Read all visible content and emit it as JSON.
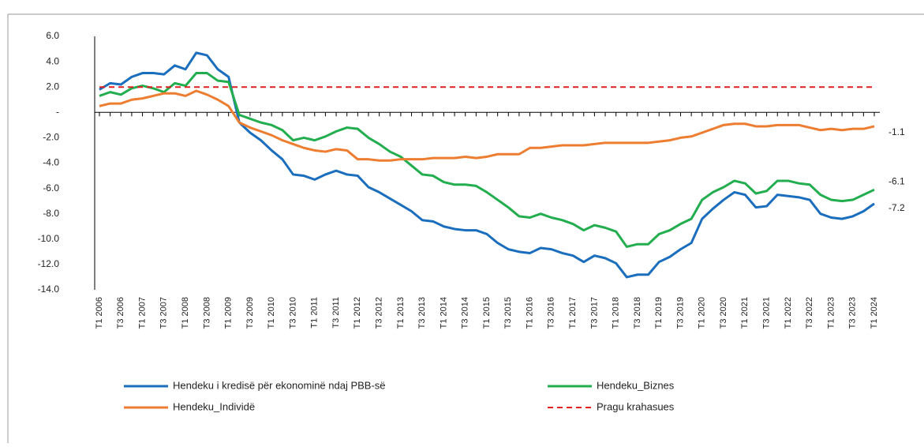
{
  "chart_data": {
    "type": "line",
    "categories": [
      "T1 2006",
      null,
      "T3 2006",
      null,
      "T1 2007",
      null,
      "T3 2007",
      null,
      "T1 2008",
      null,
      "T3 2008",
      null,
      "T1 2009",
      null,
      "T3 2009",
      null,
      "T1 2010",
      null,
      "T3 2010",
      null,
      "T1 2011",
      null,
      "T3 2011",
      null,
      "T1 2012",
      null,
      "T3 2012",
      null,
      "T1 2013",
      null,
      "T3 2013",
      null,
      "T1 2014",
      null,
      "T3 2014",
      null,
      "T1 2015",
      null,
      "T3 2015",
      null,
      "T1 2016",
      null,
      "T3 2016",
      null,
      "T1 2017",
      null,
      "T3 2017",
      null,
      "T1 2018",
      null,
      "T3 2018",
      null,
      "T1 2019",
      null,
      "T3 2019",
      null,
      "T1 2020",
      null,
      "T3 2020",
      null,
      "T1 2021",
      null,
      "T3 2021",
      null,
      "T1 2022",
      null,
      "T3 2022",
      null,
      "T1 2023",
      null,
      "T3 2023",
      null,
      "T1 2024"
    ],
    "series": [
      {
        "name": "Hendeku i kredisë për ekonominë ndaj PBB-së",
        "color": "#1a6ebd",
        "end_label": true,
        "values": [
          1.8,
          2.3,
          2.2,
          2.8,
          3.1,
          3.1,
          3.0,
          3.7,
          3.4,
          4.7,
          4.5,
          3.4,
          2.8,
          -0.8,
          -1.6,
          -2.2,
          -3.0,
          -3.7,
          -4.9,
          -5.0,
          -5.3,
          -4.9,
          -4.6,
          -4.9,
          -5.0,
          -5.9,
          -6.3,
          -6.8,
          -7.3,
          -7.8,
          -8.5,
          -8.6,
          -9.0,
          -9.2,
          -9.3,
          -9.3,
          -9.6,
          -10.3,
          -10.8,
          -11.0,
          -11.1,
          -10.7,
          -10.8,
          -11.1,
          -11.3,
          -11.8,
          -11.3,
          -11.5,
          -11.9,
          -13.0,
          -12.8,
          -12.8,
          -11.8,
          -11.4,
          -10.8,
          -10.3,
          -8.4,
          -7.6,
          -6.9,
          -6.3,
          -6.5,
          -7.5,
          -7.4,
          -6.5,
          -6.6,
          -6.7,
          -6.9,
          -8.0,
          -8.3,
          -8.4,
          -8.2,
          -7.8,
          -7.2
        ]
      },
      {
        "name": "Hendeku_Biznes",
        "color": "#22ad4e",
        "end_label": true,
        "values": [
          1.3,
          1.6,
          1.4,
          1.9,
          2.1,
          1.9,
          1.6,
          2.3,
          2.1,
          3.1,
          3.1,
          2.5,
          2.4,
          -0.2,
          -0.5,
          -0.8,
          -1.0,
          -1.4,
          -2.2,
          -2.0,
          -2.2,
          -1.9,
          -1.5,
          -1.2,
          -1.3,
          -2.0,
          -2.5,
          -3.1,
          -3.5,
          -4.2,
          -4.9,
          -5.0,
          -5.5,
          -5.7,
          -5.7,
          -5.8,
          -6.3,
          -6.9,
          -7.5,
          -8.2,
          -8.3,
          -8.0,
          -8.3,
          -8.5,
          -8.8,
          -9.3,
          -8.9,
          -9.1,
          -9.4,
          -10.6,
          -10.4,
          -10.4,
          -9.6,
          -9.3,
          -8.8,
          -8.4,
          -6.9,
          -6.3,
          -5.9,
          -5.4,
          -5.6,
          -6.4,
          -6.2,
          -5.4,
          -5.4,
          -5.6,
          -5.7,
          -6.5,
          -6.9,
          -7.0,
          -6.9,
          -6.5,
          -6.1
        ]
      },
      {
        "name": "Hendeku_Individë",
        "color": "#ed7d31",
        "end_label": true,
        "values": [
          0.5,
          0.7,
          0.7,
          1.0,
          1.1,
          1.3,
          1.5,
          1.5,
          1.3,
          1.7,
          1.4,
          1.0,
          0.5,
          -0.8,
          -1.2,
          -1.5,
          -1.8,
          -2.2,
          -2.5,
          -2.8,
          -3.0,
          -3.1,
          -2.9,
          -3.0,
          -3.7,
          -3.7,
          -3.8,
          -3.8,
          -3.7,
          -3.7,
          -3.7,
          -3.6,
          -3.6,
          -3.6,
          -3.5,
          -3.6,
          -3.5,
          -3.3,
          -3.3,
          -3.3,
          -2.8,
          -2.8,
          -2.7,
          -2.6,
          -2.6,
          -2.6,
          -2.5,
          -2.4,
          -2.4,
          -2.4,
          -2.4,
          -2.4,
          -2.3,
          -2.2,
          -2.0,
          -1.9,
          -1.6,
          -1.3,
          -1.0,
          -0.9,
          -0.9,
          -1.1,
          -1.1,
          -1.0,
          -1.0,
          -1.0,
          -1.2,
          -1.4,
          -1.3,
          -1.4,
          -1.3,
          -1.3,
          -1.1
        ]
      },
      {
        "name": "Pragu krahasues",
        "color": "#e02020",
        "dashed": true,
        "values": [
          2,
          2,
          2,
          2,
          2,
          2,
          2,
          2,
          2,
          2,
          2,
          2,
          2,
          2,
          2,
          2,
          2,
          2,
          2,
          2,
          2,
          2,
          2,
          2,
          2,
          2,
          2,
          2,
          2,
          2,
          2,
          2,
          2,
          2,
          2,
          2,
          2,
          2,
          2,
          2,
          2,
          2,
          2,
          2,
          2,
          2,
          2,
          2,
          2,
          2,
          2,
          2,
          2,
          2,
          2,
          2,
          2,
          2,
          2,
          2,
          2,
          2,
          2,
          2,
          2,
          2,
          2,
          2,
          2,
          2,
          2,
          2,
          2
        ]
      }
    ],
    "ylim": [
      -14,
      6
    ],
    "yticks": [
      {
        "value": 6,
        "label": "6.0"
      },
      {
        "value": 4,
        "label": "4.0"
      },
      {
        "value": 2,
        "label": "2.0"
      },
      {
        "value": 0,
        "label": "-"
      },
      {
        "value": -2,
        "label": "-2.0"
      },
      {
        "value": -4,
        "label": "-4.0"
      },
      {
        "value": -6,
        "label": "-6.0"
      },
      {
        "value": -8,
        "label": "-8.0"
      },
      {
        "value": -10,
        "label": "-10.0"
      },
      {
        "value": -12,
        "label": "-12.0"
      },
      {
        "value": -14,
        "label": "-14.0"
      }
    ],
    "grid": false
  }
}
